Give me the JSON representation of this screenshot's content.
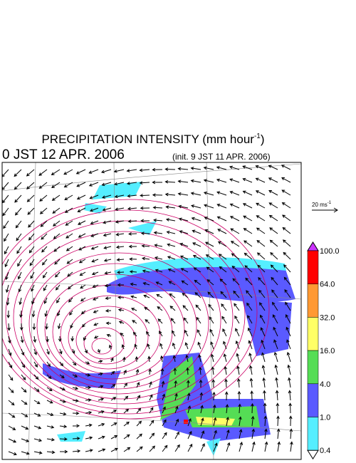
{
  "header": {
    "title": "PRECIPITATION INTENSITY (mm hour",
    "title_sup": "-1",
    "title_close": ")",
    "valid_time": "0 JST 12 APR. 2006",
    "init_time": "(init. 9 JST 11 APR. 2006)"
  },
  "wind_scale": {
    "label": "20 ms",
    "label_sup": "-1"
  },
  "colorbar": {
    "over_color": "#cc33ff",
    "under_color": "#ffffff",
    "levels": [
      {
        "label": "100.0",
        "color": "#ff0000"
      },
      {
        "label": "64.0",
        "color": "#ff9933"
      },
      {
        "label": "32.0",
        "color": "#ffff66"
      },
      {
        "label": "16.0",
        "color": "#55dd55"
      },
      {
        "label": "4.0",
        "color": "#5a5aff"
      },
      {
        "label": "1.0",
        "color": "#55eeff"
      },
      {
        "label": "0.4",
        "color": null
      }
    ]
  }
}
